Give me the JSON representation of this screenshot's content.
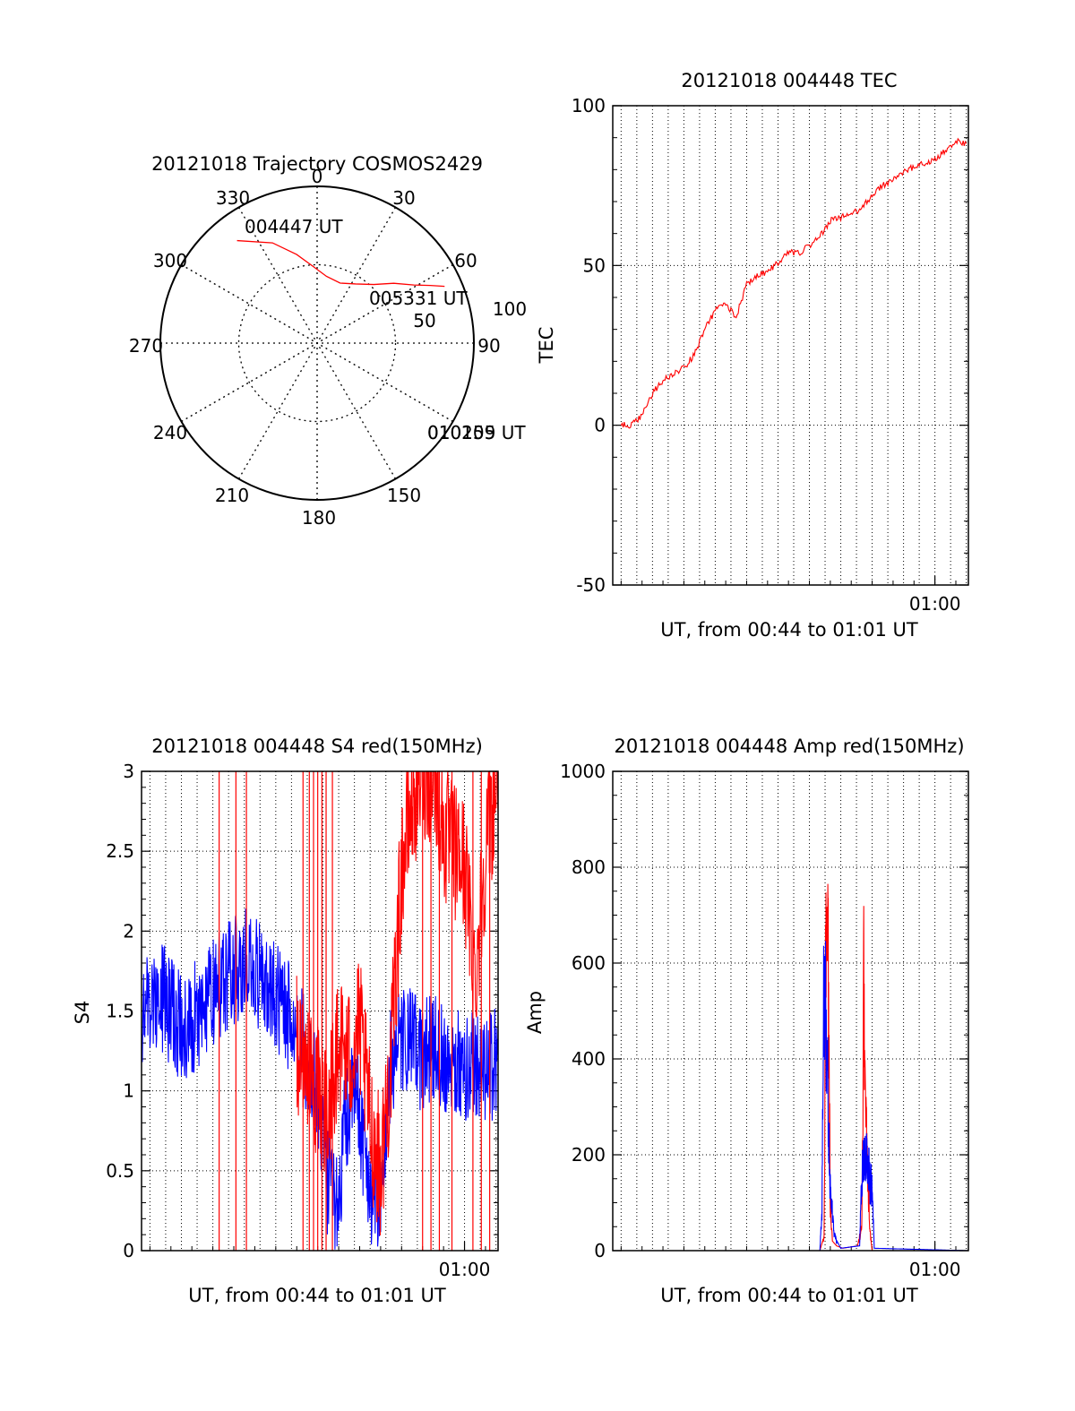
{
  "colors": {
    "red": "#ff0000",
    "blue": "#0000ff",
    "axis": "#000000",
    "grid": "#000000",
    "background": "#ffffff"
  },
  "chart_data": [
    {
      "type": "polar",
      "title": "20121018 Trajectory COSMOS2429",
      "angle_labels": [
        "0",
        "30",
        "60",
        "90",
        "150",
        "180",
        "210",
        "240",
        "270",
        "300",
        "330"
      ],
      "radial_labels": [
        "50",
        "100"
      ],
      "rlim": [
        0,
        100
      ],
      "grid": true,
      "track_color": "red",
      "track": [
        {
          "az": 322,
          "zenith": 83
        },
        {
          "az": 336,
          "zenith": 70
        },
        {
          "az": 347,
          "zenith": 58
        },
        {
          "az": 357,
          "zenith": 49
        },
        {
          "az": 8,
          "zenith": 43
        },
        {
          "az": 21,
          "zenith": 41
        },
        {
          "az": 33,
          "zenith": 45
        },
        {
          "az": 44,
          "zenith": 52
        },
        {
          "az": 52,
          "zenith": 62
        },
        {
          "az": 59,
          "zenith": 72
        },
        {
          "az": 63,
          "zenith": 81
        },
        {
          "az": 66,
          "zenith": 89
        }
      ],
      "annotations": [
        "004447 UT",
        "005331 UT",
        "010159 UT",
        "010205"
      ]
    },
    {
      "type": "line",
      "title": "20121018 004448 TEC",
      "xlabel": "UT, from 00:44 to 01:01 UT",
      "ylabel": "TEC",
      "xlim": [
        44.6,
        61.6
      ],
      "ylim": [
        -50,
        100
      ],
      "yticks": [
        -50,
        0,
        50,
        100
      ],
      "xtick_labels": [
        {
          "x": 60.0,
          "label": "01:00"
        }
      ],
      "grid": true,
      "series": [
        {
          "color": "red",
          "x": [
            45.0,
            45.5,
            46.0,
            46.5,
            47.0,
            47.5,
            48.0,
            48.5,
            49.0,
            49.5,
            50.0,
            50.5,
            51.0,
            51.5,
            52.0,
            52.5,
            53.0,
            53.5,
            54.0,
            54.5,
            55.0,
            55.5,
            56.0,
            56.5,
            57.0,
            57.5,
            58.0,
            58.5,
            59.0,
            59.5,
            60.0,
            60.5,
            61.0,
            61.5
          ],
          "y": [
            0,
            0,
            3,
            10,
            14,
            16,
            18,
            22,
            30,
            36,
            38,
            34,
            44,
            47,
            48,
            51,
            54,
            54,
            56,
            59,
            64,
            65,
            66,
            68,
            72,
            75,
            77,
            79,
            81,
            82,
            83,
            86,
            89,
            88
          ]
        }
      ]
    },
    {
      "type": "line",
      "title": "20121018 004448 S4 red(150MHz)",
      "xlabel": "UT, from 00:44 to 01:01 UT",
      "ylabel": "S4",
      "xlim": [
        44.6,
        61.6
      ],
      "ylim": [
        0,
        3
      ],
      "ytick_labels": [
        "0",
        "0.5",
        "1",
        "1.5",
        "2",
        "2.5",
        "3"
      ],
      "yticks": [
        0,
        0.5,
        1,
        1.5,
        2,
        2.5,
        3
      ],
      "xtick_labels": [
        {
          "x": 60.0,
          "label": "01:00"
        }
      ],
      "grid": true,
      "series": [
        {
          "color": "blue",
          "x": [
            44.6,
            45.5,
            46.5,
            47.5,
            48.5,
            49.5,
            50.5,
            51.5,
            52.0,
            52.5,
            53.0,
            53.5,
            54.0,
            54.3,
            54.8,
            55.5,
            56.0,
            56.5,
            57.0,
            57.5,
            58.0,
            58.5,
            59.0,
            59.5,
            60.0,
            60.5,
            61.0,
            61.6
          ],
          "y": [
            1.5,
            1.6,
            1.4,
            1.5,
            1.7,
            1.8,
            1.7,
            1.5,
            1.4,
            1.2,
            1.0,
            0.4,
            0.3,
            0.8,
            1.0,
            0.4,
            0.3,
            1.2,
            1.3,
            1.3,
            1.2,
            1.3,
            1.2,
            1.2,
            1.1,
            1.2,
            1.1,
            1.2
          ]
        },
        {
          "color": "red",
          "x": [
            52.0,
            52.5,
            53.0,
            53.5,
            54.0,
            54.5,
            55.0,
            55.5,
            56.0,
            56.5,
            57.0,
            57.5,
            58.0,
            58.5,
            59.0,
            59.5,
            60.0,
            60.5,
            61.0,
            61.6
          ],
          "y": [
            1.3,
            1.1,
            1.0,
            0.9,
            1.3,
            1.2,
            1.4,
            0.8,
            0.5,
            1.2,
            2.4,
            2.8,
            3.0,
            3.0,
            2.6,
            2.5,
            2.4,
            1.7,
            2.5,
            3.0
          ]
        }
      ]
    },
    {
      "type": "line",
      "title": "20121018 004448 Amp red(150MHz)",
      "xlabel": "UT, from 00:44 to 01:01 UT",
      "ylabel": "Amp",
      "xlim": [
        44.6,
        61.6
      ],
      "ylim": [
        0,
        1000
      ],
      "yticks": [
        0,
        200,
        400,
        600,
        800,
        1000
      ],
      "xtick_labels": [
        {
          "x": 60.0,
          "label": "01:00"
        }
      ],
      "grid": true,
      "series": [
        {
          "color": "red",
          "x": [
            44.6,
            54.5,
            54.7,
            54.8,
            54.9,
            55.0,
            55.1,
            55.3,
            55.6,
            56.3,
            56.5,
            56.6,
            56.7,
            56.9,
            57.0,
            61.6
          ],
          "y": [
            0,
            0,
            30,
            730,
            560,
            100,
            20,
            10,
            5,
            10,
            50,
            550,
            260,
            40,
            0,
            0
          ]
        },
        {
          "color": "blue",
          "x": [
            44.6,
            54.5,
            54.6,
            54.7,
            54.8,
            54.9,
            55.0,
            55.2,
            55.5,
            56.4,
            56.5,
            56.6,
            56.8,
            56.9,
            57.0,
            57.1,
            61.6
          ],
          "y": [
            0,
            0,
            80,
            620,
            450,
            300,
            120,
            30,
            5,
            10,
            140,
            210,
            180,
            150,
            120,
            5,
            0
          ]
        }
      ]
    }
  ]
}
